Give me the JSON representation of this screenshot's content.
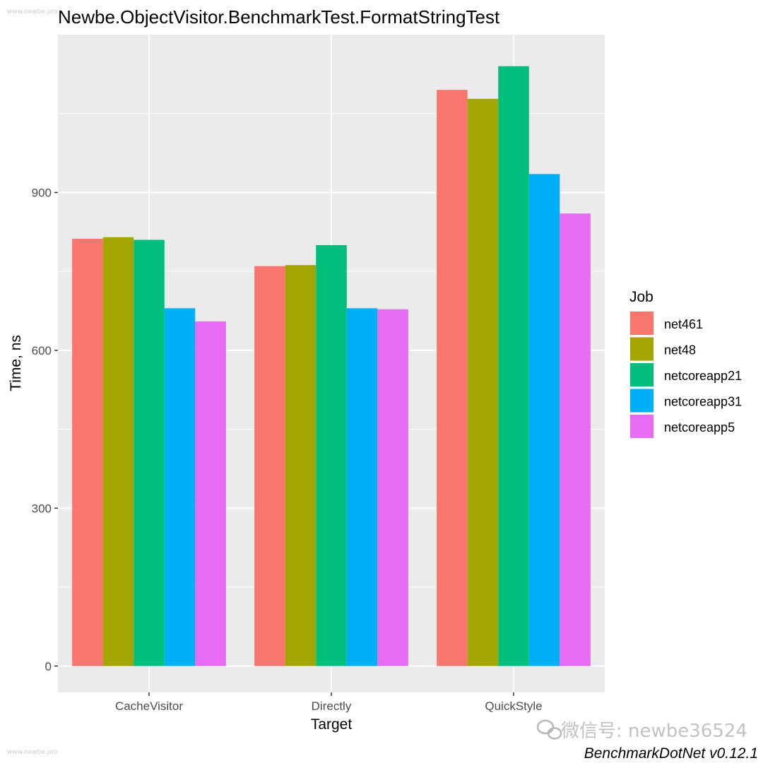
{
  "watermark_top": "www.newbe.pro",
  "watermark_bottom": "www.newbe.pro",
  "wechat_watermark": "微信号: newbe36524",
  "footer": "BenchmarkDotNet v0.12.1",
  "chart_data": {
    "type": "bar",
    "title": "Newbe.ObjectVisitor.BenchmarkTest.FormatStringTest",
    "xlabel": "Target",
    "ylabel": "Time, ns",
    "ylim": [
      -50,
      1200
    ],
    "yticks": [
      0,
      300,
      600,
      900
    ],
    "categories": [
      "CacheVisitor",
      "Directly",
      "QuickStyle"
    ],
    "series": [
      {
        "name": "net461",
        "color": "#F8766D",
        "values": [
          812,
          760,
          1095
        ]
      },
      {
        "name": "net48",
        "color": "#A3A500",
        "values": [
          815,
          762,
          1078
        ]
      },
      {
        "name": "netcoreapp21",
        "color": "#00BF7D",
        "values": [
          810,
          800,
          1140
        ]
      },
      {
        "name": "netcoreapp31",
        "color": "#00B0F6",
        "values": [
          680,
          680,
          935
        ]
      },
      {
        "name": "netcoreapp5",
        "color": "#E76BF3",
        "values": [
          655,
          678,
          860
        ]
      }
    ],
    "legend": {
      "title": "Job",
      "position": "right"
    },
    "grid": true,
    "background": "#EBEBEB"
  }
}
